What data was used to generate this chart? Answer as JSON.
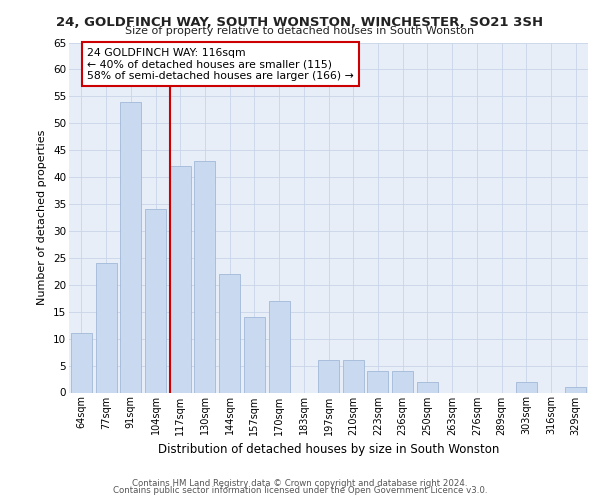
{
  "title1": "24, GOLDFINCH WAY, SOUTH WONSTON, WINCHESTER, SO21 3SH",
  "title2": "Size of property relative to detached houses in South Wonston",
  "xlabel": "Distribution of detached houses by size in South Wonston",
  "ylabel": "Number of detached properties",
  "bar_labels": [
    "64sqm",
    "77sqm",
    "91sqm",
    "104sqm",
    "117sqm",
    "130sqm",
    "144sqm",
    "157sqm",
    "170sqm",
    "183sqm",
    "197sqm",
    "210sqm",
    "223sqm",
    "236sqm",
    "250sqm",
    "263sqm",
    "276sqm",
    "289sqm",
    "303sqm",
    "316sqm",
    "329sqm"
  ],
  "bar_values": [
    11,
    24,
    54,
    34,
    42,
    43,
    22,
    14,
    17,
    0,
    6,
    6,
    4,
    4,
    2,
    0,
    0,
    0,
    2,
    0,
    1
  ],
  "bar_color": "#c9d9ef",
  "bar_edge_color": "#a0b8d8",
  "vline_color": "#cc0000",
  "ylim": [
    0,
    65
  ],
  "yticks": [
    0,
    5,
    10,
    15,
    20,
    25,
    30,
    35,
    40,
    45,
    50,
    55,
    60,
    65
  ],
  "annotation_title": "24 GOLDFINCH WAY: 116sqm",
  "annotation_line1": "← 40% of detached houses are smaller (115)",
  "annotation_line2": "58% of semi-detached houses are larger (166) →",
  "footer1": "Contains HM Land Registry data © Crown copyright and database right 2024.",
  "footer2": "Contains public sector information licensed under the Open Government Licence v3.0.",
  "background_color": "#ffffff",
  "plot_bg_color": "#e8eef8",
  "grid_color": "#c8d4e8"
}
